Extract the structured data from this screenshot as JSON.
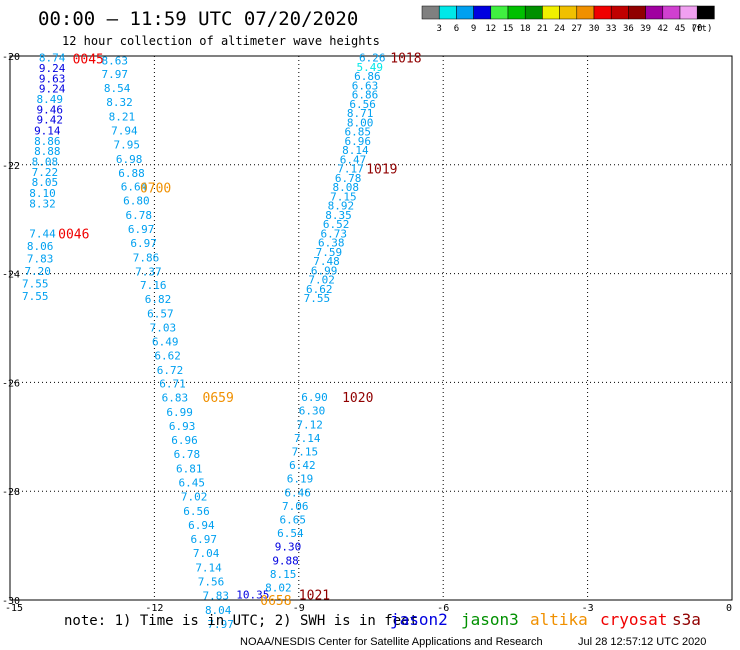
{
  "header": {
    "title": "00:00 – 11:59 UTC 07/20/2020",
    "subtitle": "12 hour collection of altimeter wave heights"
  },
  "color_scale": {
    "labels": [
      "3",
      "6",
      "9",
      "12",
      "15",
      "18",
      "21",
      "24",
      "27",
      "30",
      "33",
      "36",
      "39",
      "42",
      "45",
      "70"
    ],
    "unit": "(ft)",
    "colors": [
      "#808080",
      "#00e8e8",
      "#00a0f0",
      "#0000e0",
      "#40f040",
      "#00c000",
      "#009000",
      "#f0f000",
      "#f0c000",
      "#f09000",
      "#f00000",
      "#c00000",
      "#900000",
      "#a000a0",
      "#d040d0",
      "#f0a0f0",
      "#000000"
    ]
  },
  "footer": {
    "note": "note: 1) Time is in UTC; 2) SWH is in feet",
    "satellites": [
      {
        "name": "jason2",
        "color": "#0000e0"
      },
      {
        "name": "jason3",
        "color": "#009000"
      },
      {
        "name": "altika",
        "color": "#f09000"
      },
      {
        "name": "cryosat",
        "color": "#f00000"
      },
      {
        "name": "s3a",
        "color": "#900000"
      }
    ],
    "credit": "NOAA/NESDIS Center for Satellite Applications and Research",
    "timestamp": "Jul 28 12:57:12 UTC 2020"
  },
  "chart_data": {
    "type": "scatter",
    "title": "",
    "xlabel": "",
    "ylabel": "",
    "xlim": [
      -15,
      0
    ],
    "ylim": [
      -30,
      -20
    ],
    "grid": true,
    "x_ticks": [
      "-15",
      "-12",
      "-9",
      "-6",
      "-3",
      "0"
    ],
    "y_ticks": [
      "-20",
      "-22",
      "-24",
      "-26",
      "-28",
      "-30"
    ],
    "series": [
      {
        "name": "pass-0045",
        "time_label": "0045",
        "label_color": "#f00000",
        "label_point": {
          "x": -13.7,
          "y": -20.05
        },
        "points": [
          {
            "x": -14.4,
            "y": -20.03,
            "v": "8.74",
            "c": "#00a0f0"
          },
          {
            "x": -14.4,
            "y": -20.22,
            "v": "9.24",
            "c": "#0000e0"
          },
          {
            "x": -14.4,
            "y": -20.41,
            "v": "9.63",
            "c": "#0000e0"
          },
          {
            "x": -14.4,
            "y": -20.6,
            "v": "9.24",
            "c": "#0000e0"
          },
          {
            "x": -14.45,
            "y": -20.79,
            "v": "8.49",
            "c": "#00a0f0"
          },
          {
            "x": -14.45,
            "y": -20.98,
            "v": "9.46",
            "c": "#0000e0"
          },
          {
            "x": -14.45,
            "y": -21.17,
            "v": "9.42",
            "c": "#0000e0"
          },
          {
            "x": -14.5,
            "y": -21.37,
            "v": "9.14",
            "c": "#0000e0"
          },
          {
            "x": -14.5,
            "y": -21.56,
            "v": "8.86",
            "c": "#00a0f0"
          },
          {
            "x": -14.5,
            "y": -21.75,
            "v": "8.88",
            "c": "#00a0f0"
          },
          {
            "x": -14.55,
            "y": -21.94,
            "v": "8.08",
            "c": "#00a0f0"
          },
          {
            "x": -14.55,
            "y": -22.13,
            "v": "7.22",
            "c": "#00a0f0"
          },
          {
            "x": -14.55,
            "y": -22.32,
            "v": "8.05",
            "c": "#00a0f0"
          },
          {
            "x": -14.6,
            "y": -22.52,
            "v": "8.10",
            "c": "#00a0f0"
          },
          {
            "x": -14.6,
            "y": -22.71,
            "v": "8.32",
            "c": "#00a0f0"
          }
        ]
      },
      {
        "name": "pass-0046",
        "time_label": "0046",
        "label_color": "#f00000",
        "label_point": {
          "x": -14.0,
          "y": -23.26
        },
        "points": [
          {
            "x": -14.6,
            "y": -23.26,
            "v": "7.44",
            "c": "#00a0f0"
          },
          {
            "x": -14.65,
            "y": -23.49,
            "v": "8.06",
            "c": "#00a0f0"
          },
          {
            "x": -14.65,
            "y": -23.72,
            "v": "7.83",
            "c": "#00a0f0"
          },
          {
            "x": -14.7,
            "y": -23.95,
            "v": "7.20",
            "c": "#00a0f0"
          },
          {
            "x": -14.75,
            "y": -24.18,
            "v": "7.55",
            "c": "#00a0f0"
          },
          {
            "x": -14.75,
            "y": -24.41,
            "v": "7.55",
            "c": "#00a0f0"
          }
        ]
      },
      {
        "name": "pass-0700",
        "time_label": "0700",
        "label_color": "#f09000",
        "label_point": {
          "x": -12.3,
          "y": -22.42
        },
        "points": [
          {
            "x": -13.1,
            "y": -20.08,
            "v": "8.63",
            "c": "#00a0f0"
          },
          {
            "x": -13.1,
            "y": -20.33,
            "v": "7.97",
            "c": "#00a0f0"
          },
          {
            "x": -13.05,
            "y": -20.59,
            "v": "8.54",
            "c": "#00a0f0"
          },
          {
            "x": -13.0,
            "y": -20.85,
            "v": "8.32",
            "c": "#00a0f0"
          },
          {
            "x": -12.95,
            "y": -21.11,
            "v": "8.21",
            "c": "#00a0f0"
          },
          {
            "x": -12.9,
            "y": -21.37,
            "v": "7.94",
            "c": "#00a0f0"
          },
          {
            "x": -12.85,
            "y": -21.63,
            "v": "7.95",
            "c": "#00a0f0"
          },
          {
            "x": -12.8,
            "y": -21.89,
            "v": "6.98",
            "c": "#00a0f0"
          },
          {
            "x": -12.75,
            "y": -22.15,
            "v": "6.88",
            "c": "#00a0f0"
          },
          {
            "x": -12.7,
            "y": -22.4,
            "v": "6.64",
            "c": "#00a0f0"
          },
          {
            "x": -12.65,
            "y": -22.66,
            "v": "6.80",
            "c": "#00a0f0"
          },
          {
            "x": -12.6,
            "y": -22.92,
            "v": "6.78",
            "c": "#00a0f0"
          },
          {
            "x": -12.55,
            "y": -23.18,
            "v": "6.97",
            "c": "#00a0f0"
          },
          {
            "x": -12.5,
            "y": -23.44,
            "v": "6.97",
            "c": "#00a0f0"
          },
          {
            "x": -12.45,
            "y": -23.7,
            "v": "7.86",
            "c": "#00a0f0"
          },
          {
            "x": -12.4,
            "y": -23.96,
            "v": "7.37",
            "c": "#00a0f0"
          },
          {
            "x": -12.3,
            "y": -24.21,
            "v": "7.16",
            "c": "#00a0f0"
          },
          {
            "x": -12.2,
            "y": -24.47,
            "v": "6.82",
            "c": "#00a0f0"
          },
          {
            "x": -12.15,
            "y": -24.73,
            "v": "6.57",
            "c": "#00a0f0"
          },
          {
            "x": -12.1,
            "y": -24.99,
            "v": "7.03",
            "c": "#00a0f0"
          },
          {
            "x": -12.05,
            "y": -25.25,
            "v": "6.49",
            "c": "#00a0f0"
          }
        ]
      },
      {
        "name": "pass-0659",
        "time_label": "0659",
        "label_color": "#f09000",
        "label_point": {
          "x": -11.0,
          "y": -26.27
        },
        "points": [
          {
            "x": -12.0,
            "y": -25.51,
            "v": "6.62",
            "c": "#00a0f0"
          },
          {
            "x": -11.95,
            "y": -25.77,
            "v": "6.72",
            "c": "#00a0f0"
          },
          {
            "x": -11.9,
            "y": -26.02,
            "v": "6.71",
            "c": "#00a0f0"
          },
          {
            "x": -11.85,
            "y": -26.28,
            "v": "6.83",
            "c": "#00a0f0"
          },
          {
            "x": -11.75,
            "y": -26.54,
            "v": "6.99",
            "c": "#00a0f0"
          },
          {
            "x": -11.7,
            "y": -26.8,
            "v": "6.93",
            "c": "#00a0f0"
          },
          {
            "x": -11.65,
            "y": -27.06,
            "v": "6.96",
            "c": "#00a0f0"
          },
          {
            "x": -11.6,
            "y": -27.32,
            "v": "6.78",
            "c": "#00a0f0"
          },
          {
            "x": -11.55,
            "y": -27.58,
            "v": "6.81",
            "c": "#00a0f0"
          },
          {
            "x": -11.5,
            "y": -27.84,
            "v": "6.45",
            "c": "#00a0f0"
          },
          {
            "x": -11.45,
            "y": -28.1,
            "v": "7.02",
            "c": "#00a0f0"
          },
          {
            "x": -11.4,
            "y": -28.36,
            "v": "6.56",
            "c": "#00a0f0"
          },
          {
            "x": -11.3,
            "y": -28.62,
            "v": "6.94",
            "c": "#00a0f0"
          },
          {
            "x": -11.25,
            "y": -28.88,
            "v": "6.97",
            "c": "#00a0f0"
          },
          {
            "x": -11.2,
            "y": -29.14,
            "v": "7.04",
            "c": "#00a0f0"
          },
          {
            "x": -11.15,
            "y": -29.4,
            "v": "7.14",
            "c": "#00a0f0"
          },
          {
            "x": -11.1,
            "y": -29.66,
            "v": "7.56",
            "c": "#00a0f0"
          },
          {
            "x": -11.0,
            "y": -29.92,
            "v": "7.83",
            "c": "#00a0f0"
          },
          {
            "x": -10.95,
            "y": -30.18,
            "v": "8.04",
            "c": "#00a0f0"
          },
          {
            "x": -10.9,
            "y": -30.44,
            "v": "7.97",
            "c": "#00a0f0"
          }
        ]
      },
      {
        "name": "pass-1018",
        "time_label": "1018",
        "label_color": "#900000",
        "label_point": {
          "x": -7.1,
          "y": -20.03
        },
        "points": [
          {
            "x": -7.75,
            "y": -20.03,
            "v": "6.26",
            "c": "#00a0f0"
          },
          {
            "x": -7.8,
            "y": -20.2,
            "v": "5.49",
            "c": "#00e8e8"
          },
          {
            "x": -7.85,
            "y": -20.37,
            "v": "6.86",
            "c": "#00a0f0"
          },
          {
            "x": -7.9,
            "y": -20.54,
            "v": "6.63",
            "c": "#00a0f0"
          },
          {
            "x": -7.9,
            "y": -20.71,
            "v": "6.86",
            "c": "#00a0f0"
          },
          {
            "x": -7.95,
            "y": -20.88,
            "v": "6.56",
            "c": "#00a0f0"
          },
          {
            "x": -8.0,
            "y": -21.05,
            "v": "8.71",
            "c": "#00a0f0"
          },
          {
            "x": -8.0,
            "y": -21.22,
            "v": "8.00",
            "c": "#00a0f0"
          },
          {
            "x": -8.05,
            "y": -21.39,
            "v": "6.85",
            "c": "#00a0f0"
          },
          {
            "x": -8.05,
            "y": -21.56,
            "v": "6.96",
            "c": "#00a0f0"
          },
          {
            "x": -8.1,
            "y": -21.73,
            "v": "8.14",
            "c": "#00a0f0"
          },
          {
            "x": -8.15,
            "y": -21.9,
            "v": "6.47",
            "c": "#00a0f0"
          }
        ]
      },
      {
        "name": "pass-1019",
        "time_label": "1019",
        "label_color": "#900000",
        "label_point": {
          "x": -7.6,
          "y": -22.07
        },
        "points": [
          {
            "x": -8.2,
            "y": -22.07,
            "v": "7.17",
            "c": "#00a0f0"
          },
          {
            "x": -8.25,
            "y": -22.24,
            "v": "6.78",
            "c": "#00a0f0"
          },
          {
            "x": -8.3,
            "y": -22.41,
            "v": "8.08",
            "c": "#00a0f0"
          },
          {
            "x": -8.35,
            "y": -22.58,
            "v": "7.15",
            "c": "#00a0f0"
          },
          {
            "x": -8.4,
            "y": -22.75,
            "v": "8.92",
            "c": "#00a0f0"
          },
          {
            "x": -8.45,
            "y": -22.92,
            "v": "8.35",
            "c": "#00a0f0"
          },
          {
            "x": -8.5,
            "y": -23.09,
            "v": "6.52",
            "c": "#00a0f0"
          },
          {
            "x": -8.55,
            "y": -23.26,
            "v": "6.73",
            "c": "#00a0f0"
          },
          {
            "x": -8.6,
            "y": -23.43,
            "v": "6.38",
            "c": "#00a0f0"
          },
          {
            "x": -8.65,
            "y": -23.6,
            "v": "7.59",
            "c": "#00a0f0"
          },
          {
            "x": -8.7,
            "y": -23.77,
            "v": "7.48",
            "c": "#00a0f0"
          },
          {
            "x": -8.75,
            "y": -23.94,
            "v": "6.99",
            "c": "#00a0f0"
          },
          {
            "x": -8.8,
            "y": -24.11,
            "v": "7.02",
            "c": "#00a0f0"
          },
          {
            "x": -8.85,
            "y": -24.28,
            "v": "6.62",
            "c": "#00a0f0"
          },
          {
            "x": -8.9,
            "y": -24.45,
            "v": "7.55",
            "c": "#00a0f0"
          }
        ]
      },
      {
        "name": "pass-1020",
        "time_label": "1020",
        "label_color": "#900000",
        "label_point": {
          "x": -8.1,
          "y": -26.27
        },
        "points": [
          {
            "x": -8.95,
            "y": -26.27,
            "v": "6.90",
            "c": "#00a0f0"
          },
          {
            "x": -9.0,
            "y": -26.52,
            "v": "6.30",
            "c": "#00a0f0"
          },
          {
            "x": -9.05,
            "y": -26.77,
            "v": "7.12",
            "c": "#00a0f0"
          },
          {
            "x": -9.1,
            "y": -27.02,
            "v": "7.14",
            "c": "#00a0f0"
          },
          {
            "x": -9.15,
            "y": -27.27,
            "v": "7.15",
            "c": "#00a0f0"
          },
          {
            "x": -9.2,
            "y": -27.52,
            "v": "6.42",
            "c": "#00a0f0"
          },
          {
            "x": -9.25,
            "y": -27.77,
            "v": "6.19",
            "c": "#00a0f0"
          },
          {
            "x": -9.3,
            "y": -28.02,
            "v": "6.46",
            "c": "#00a0f0"
          },
          {
            "x": -9.35,
            "y": -28.27,
            "v": "7.06",
            "c": "#00a0f0"
          },
          {
            "x": -9.4,
            "y": -28.52,
            "v": "6.65",
            "c": "#00a0f0"
          },
          {
            "x": -9.45,
            "y": -28.77,
            "v": "6.54",
            "c": "#00a0f0"
          },
          {
            "x": -9.5,
            "y": -29.02,
            "v": "9.30",
            "c": "#0000e0"
          },
          {
            "x": -9.55,
            "y": -29.27,
            "v": "9.88",
            "c": "#0000e0"
          },
          {
            "x": -9.6,
            "y": -29.52,
            "v": "8.15",
            "c": "#00a0f0"
          },
          {
            "x": -9.7,
            "y": -29.77,
            "v": "8.02",
            "c": "#00a0f0"
          },
          {
            "x": -10.3,
            "y": -29.9,
            "v": "10.35",
            "c": "#0000e0"
          }
        ]
      },
      {
        "name": "pass-1021",
        "time_label": "1021",
        "label_color": "#900000",
        "label_point": {
          "x": -9.0,
          "y": -29.9
        },
        "points": []
      },
      {
        "name": "pass-0658",
        "time_label": "0658",
        "label_color": "#f09000",
        "label_point": {
          "x": -9.8,
          "y": -30.0
        },
        "points": []
      }
    ]
  }
}
